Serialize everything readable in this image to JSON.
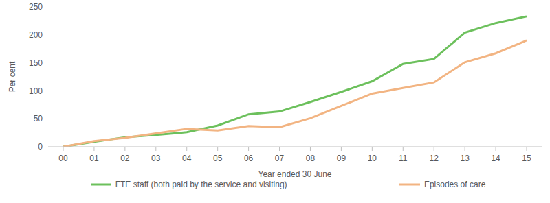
{
  "chart_data": {
    "type": "line",
    "x_label": "Year ended 30 June",
    "y_label": "Per cent",
    "categories": [
      "00",
      "01",
      "02",
      "03",
      "04",
      "05",
      "06",
      "07",
      "08",
      "09",
      "10",
      "11",
      "12",
      "13",
      "14",
      "15"
    ],
    "series": [
      {
        "name": "FTE staff (both paid by the service and visiting)",
        "color": "#6cc05c",
        "values": [
          0,
          9,
          17,
          21,
          26,
          38,
          58,
          63,
          80,
          98,
          117,
          148,
          157,
          204,
          221,
          233
        ]
      },
      {
        "name": "Episodes of care",
        "color": "#f2b482",
        "values": [
          0,
          10,
          16,
          24,
          32,
          29,
          37,
          35,
          51,
          73,
          95,
          105,
          115,
          151,
          167,
          190
        ]
      }
    ],
    "ylim": [
      0,
      250
    ],
    "yticks": [
      0,
      50,
      100,
      150,
      200,
      250
    ],
    "grid": false,
    "legend": "bottom"
  }
}
